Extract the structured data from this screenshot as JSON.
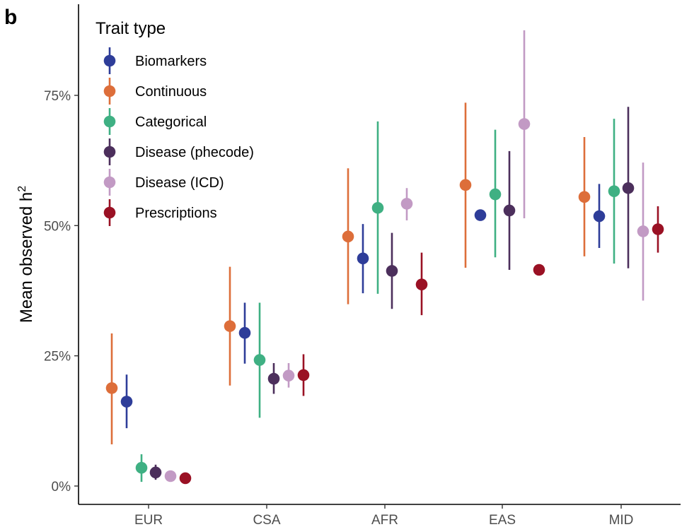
{
  "panel_label": "b",
  "colors": {
    "Biomarkers": "#2e3d99",
    "Continuous": "#dd6e3a",
    "Categorical": "#3fb083",
    "Disease (phecode)": "#4c2f5c",
    "Disease (ICD)": "#c29ac4",
    "Prescriptions": "#9a1124",
    "axis": "#000000",
    "tick_text": "#4d4d4d"
  },
  "chart_data": {
    "type": "scatter",
    "subtype": "pointrange",
    "title": "",
    "xlabel": "",
    "ylabel": "Mean observed h",
    "ylabel_superscript": "2",
    "categories": [
      "EUR",
      "CSA",
      "AFR",
      "EAS",
      "MID"
    ],
    "ylim": [
      -0.03,
      0.9
    ],
    "yticks": [
      0,
      0.25,
      0.5,
      0.75
    ],
    "ytick_labels": [
      "0%",
      "25%",
      "50%",
      "75%"
    ],
    "grid": false,
    "legend": {
      "title": "Trait type",
      "placement": "top-left",
      "entries": [
        "Biomarkers",
        "Continuous",
        "Categorical",
        "Disease (phecode)",
        "Disease (ICD)",
        "Prescriptions"
      ]
    },
    "series": [
      {
        "name": "Continuous",
        "values": [
          0.188,
          0.307,
          0.479,
          0.578,
          0.555
        ],
        "lower": [
          0.08,
          0.193,
          0.349,
          0.419,
          0.441
        ],
        "upper": [
          0.293,
          0.421,
          0.61,
          0.736,
          0.67
        ]
      },
      {
        "name": "Biomarkers",
        "values": [
          0.162,
          0.294,
          0.437,
          0.52,
          0.518
        ],
        "lower": [
          0.111,
          0.235,
          0.37,
          null,
          0.457
        ],
        "upper": [
          0.214,
          0.352,
          0.503,
          null,
          0.58
        ]
      },
      {
        "name": "Categorical",
        "values": [
          0.035,
          0.242,
          0.534,
          0.56,
          0.566
        ],
        "lower": [
          0.008,
          0.131,
          0.369,
          0.439,
          0.427
        ],
        "upper": [
          0.061,
          0.352,
          0.7,
          0.684,
          0.705
        ]
      },
      {
        "name": "Disease (phecode)",
        "values": [
          0.026,
          0.206,
          0.413,
          0.529,
          0.572
        ],
        "lower": [
          0.012,
          0.177,
          0.34,
          0.415,
          0.418
        ],
        "upper": [
          0.041,
          0.236,
          0.486,
          0.643,
          0.728
        ]
      },
      {
        "name": "Disease (ICD)",
        "values": [
          0.019,
          0.212,
          0.542,
          0.695,
          0.489
        ],
        "lower": [
          null,
          0.189,
          0.51,
          0.514,
          0.356
        ],
        "upper": [
          null,
          0.236,
          0.572,
          0.875,
          0.621
        ]
      },
      {
        "name": "Prescriptions",
        "values": [
          0.015,
          0.213,
          0.387,
          0.415,
          0.493
        ],
        "lower": [
          null,
          0.173,
          0.328,
          null,
          0.448
        ],
        "upper": [
          null,
          0.253,
          0.448,
          null,
          0.537
        ]
      }
    ]
  }
}
